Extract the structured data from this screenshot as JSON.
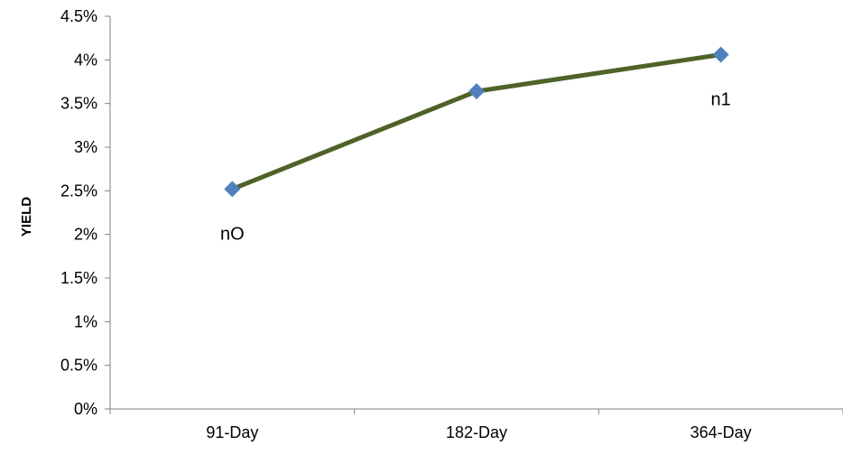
{
  "chart_data": {
    "type": "line",
    "title": "",
    "xlabel": "",
    "ylabel": "YIELD",
    "categories": [
      "91-Day",
      "182-Day",
      "364-Day"
    ],
    "series": [
      {
        "values": [
          2.52,
          3.64,
          4.06
        ],
        "color": "#4f6228",
        "marker_color": "#4f81bd",
        "marker": "diamond"
      }
    ],
    "yticks": [
      "0%",
      "0.5%",
      "1%",
      "1.5%",
      "2%",
      "2.5%",
      "3%",
      "3.5%",
      "4%",
      "4.5%"
    ],
    "ylim": [
      0,
      4.5
    ],
    "grid": false,
    "legend": "none",
    "annotations": [
      {
        "text": "nO",
        "category": "91-Day",
        "placement": "below"
      },
      {
        "text": "n1",
        "category": "364-Day",
        "placement": "below"
      }
    ]
  }
}
